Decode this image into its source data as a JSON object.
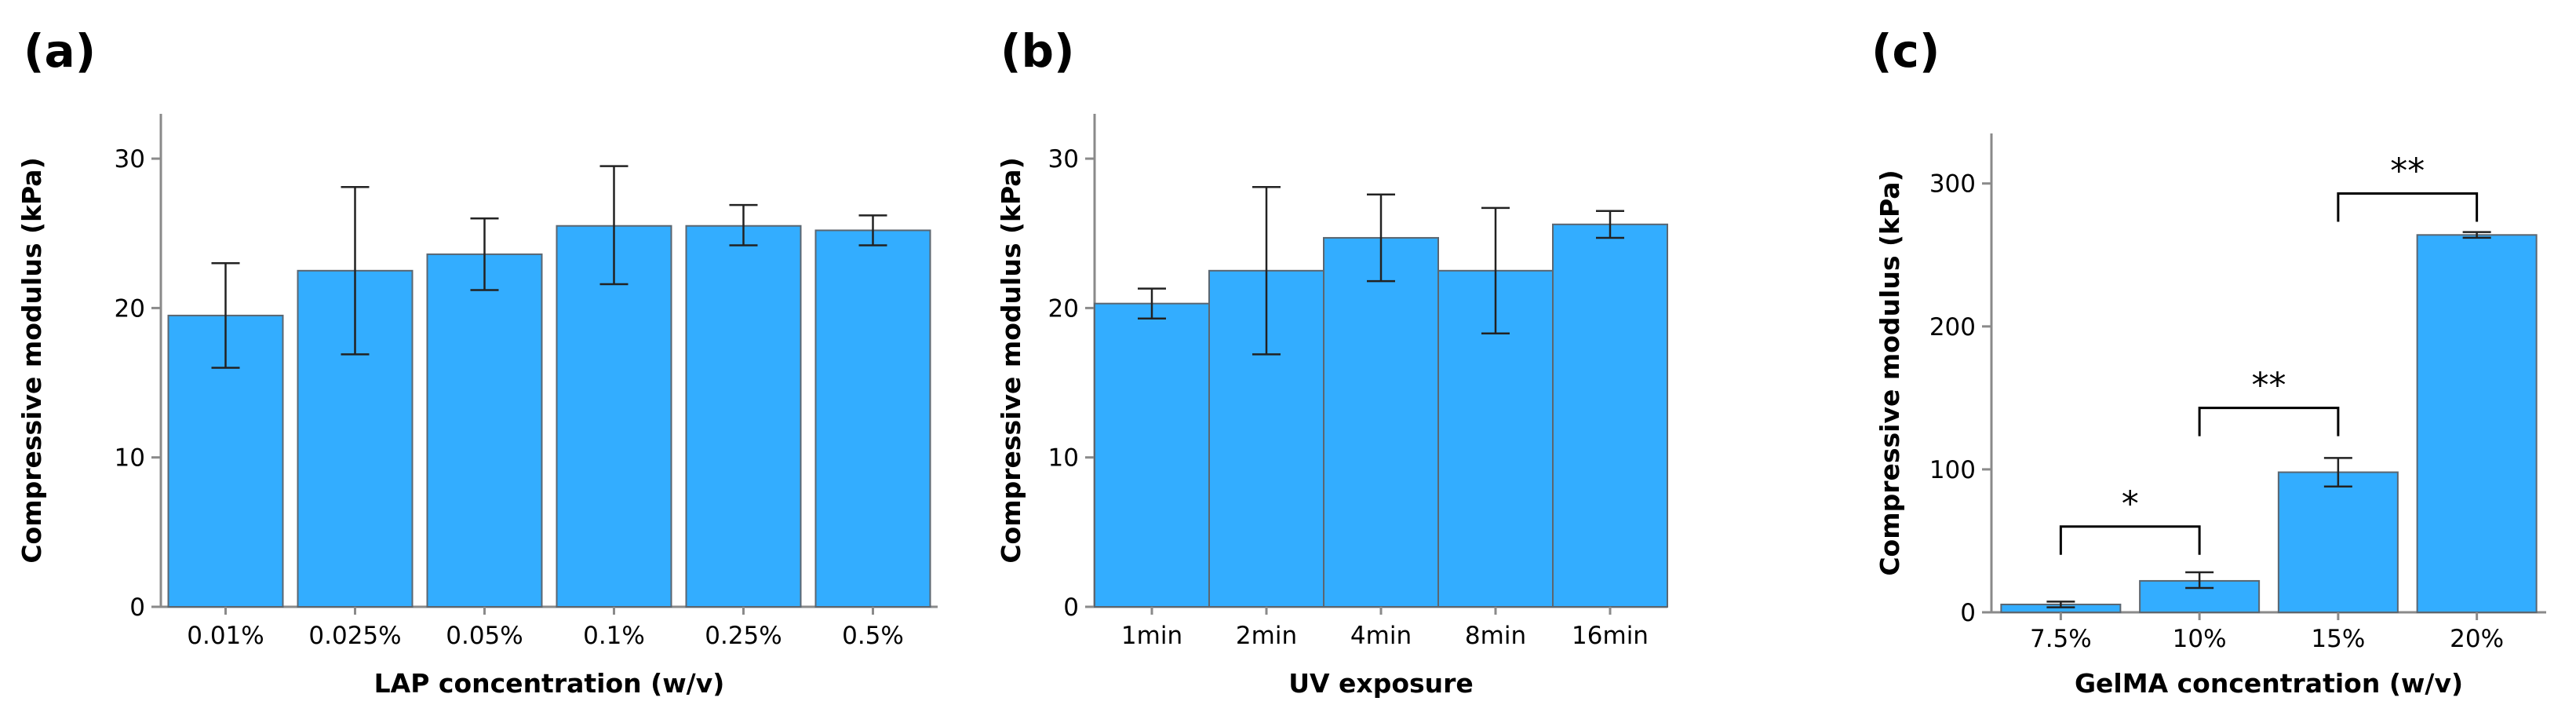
{
  "chart_data": [
    {
      "type": "bar",
      "panel_label": "(a)",
      "categories": [
        "0.01%",
        "0.025%",
        "0.05%",
        "0.1%",
        "0.25%",
        "0.5%"
      ],
      "values": [
        19.5,
        22.5,
        23.6,
        25.5,
        25.5,
        25.2
      ],
      "error_low": [
        16.0,
        16.9,
        21.2,
        21.6,
        24.2,
        24.2
      ],
      "error_high": [
        23.0,
        28.1,
        26.0,
        29.5,
        26.9,
        26.2
      ],
      "xlabel": "LAP concentration (w/v)",
      "ylabel": "Compressive modulus (kPa)",
      "ylim": [
        0,
        33
      ],
      "yticks": [
        "0",
        "10",
        "20",
        "30"
      ],
      "bar_color": "#33adff",
      "significance": []
    },
    {
      "type": "bar",
      "panel_label": "(b)",
      "categories": [
        "1min",
        "2min",
        "4min",
        "8min",
        "16min"
      ],
      "values": [
        20.3,
        22.5,
        24.7,
        22.5,
        25.6
      ],
      "error_low": [
        19.3,
        16.9,
        21.8,
        18.3,
        24.7
      ],
      "error_high": [
        21.3,
        28.1,
        27.6,
        26.7,
        26.5
      ],
      "xlabel": "UV exposure",
      "ylabel": "Compressive modulus (kPa)",
      "ylim": [
        0,
        33
      ],
      "yticks": [
        "0",
        "10",
        "20",
        "30"
      ],
      "bar_color": "#33adff",
      "significance": []
    },
    {
      "type": "bar",
      "panel_label": "(c)",
      "categories": [
        "7.5%",
        "10%",
        "15%",
        "20%"
      ],
      "values": [
        5.5,
        22,
        98,
        264
      ],
      "error_low": [
        3.5,
        17,
        88,
        262
      ],
      "error_high": [
        7.5,
        28,
        108,
        266
      ],
      "xlabel": "GelMA concentration (w/v)",
      "ylabel": "Compressive modulus (kPa)",
      "ylim": [
        0,
        335
      ],
      "yticks": [
        "0",
        "100",
        "200",
        "300"
      ],
      "bar_color": "#33adff",
      "significance": [
        {
          "from": 0,
          "to": 1,
          "label": "*",
          "level": 60
        },
        {
          "from": 1,
          "to": 2,
          "label": "**",
          "level": 143
        },
        {
          "from": 2,
          "to": 3,
          "label": "**",
          "level": 293
        }
      ]
    }
  ]
}
